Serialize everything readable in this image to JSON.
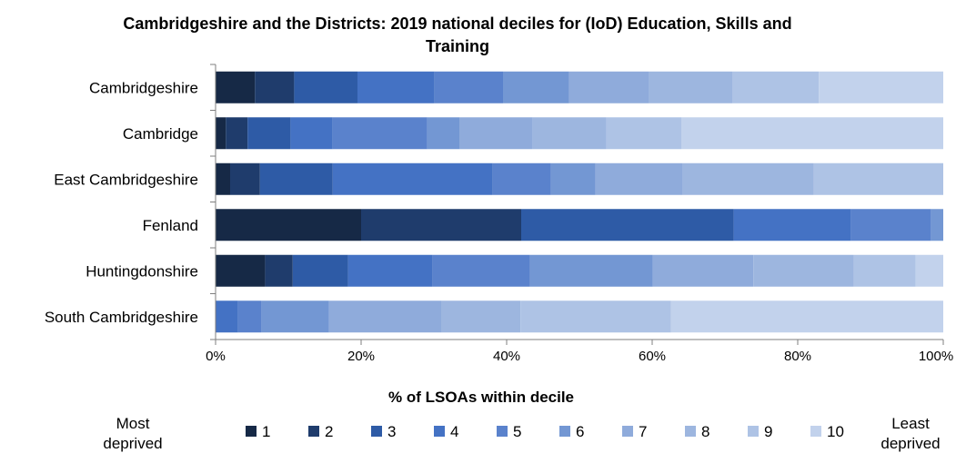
{
  "chart_data": {
    "type": "bar",
    "orientation": "horizontal",
    "stacked": true,
    "title": "Cambridgeshire and the Districts: 2019 national deciles for (IoD) Education, Skills and Training",
    "title_lines": [
      "Cambridgeshire and the Districts: 2019 national deciles for (IoD) Education, Skills and",
      "Training"
    ],
    "xlabel": "% of LSOAs within decile",
    "xlim": [
      0,
      100
    ],
    "x_ticks": [
      "0%",
      "20%",
      "40%",
      "60%",
      "80%",
      "100%"
    ],
    "categories": [
      "Cambridgeshire",
      "Cambridge",
      "East Cambridgeshire",
      "Fenland",
      "Huntingdonshire",
      "South Cambridgeshire"
    ],
    "series": [
      {
        "name": "1",
        "values": [
          5.4,
          1.4,
          2.0,
          20.0,
          6.8,
          0.0
        ]
      },
      {
        "name": "2",
        "values": [
          5.4,
          3.0,
          4.1,
          22.0,
          3.8,
          0.0
        ]
      },
      {
        "name": "3",
        "values": [
          8.7,
          5.9,
          10.0,
          29.2,
          7.6,
          0.0
        ]
      },
      {
        "name": "4",
        "values": [
          10.6,
          5.8,
          22.0,
          16.1,
          11.6,
          3.1
        ]
      },
      {
        "name": "5",
        "values": [
          9.4,
          13.0,
          8.0,
          11.0,
          13.4,
          3.2
        ]
      },
      {
        "name": "6",
        "values": [
          9.1,
          4.4,
          6.1,
          1.7,
          16.9,
          9.3
        ]
      },
      {
        "name": "7",
        "values": [
          10.9,
          10.1,
          12.0,
          0.0,
          13.8,
          15.4
        ]
      },
      {
        "name": "8",
        "values": [
          11.5,
          10.1,
          18.0,
          0.0,
          13.8,
          10.9
        ]
      },
      {
        "name": "9",
        "values": [
          11.9,
          10.3,
          17.8,
          0.0,
          8.5,
          20.7
        ]
      },
      {
        "name": "10",
        "values": [
          17.1,
          36.0,
          0.0,
          0.0,
          3.8,
          37.4
        ]
      }
    ],
    "legend": {
      "placement": "bottom",
      "left_caption": [
        "Most",
        "deprived"
      ],
      "right_caption": [
        "Least",
        "deprived"
      ]
    },
    "colors": [
      "#162946",
      "#1f3c6c",
      "#2e5ba6",
      "#4472c4",
      "#5a82cc",
      "#7397d3",
      "#8fabdb",
      "#9db6df",
      "#aec3e5",
      "#c2d2ec"
    ],
    "grid": false
  }
}
